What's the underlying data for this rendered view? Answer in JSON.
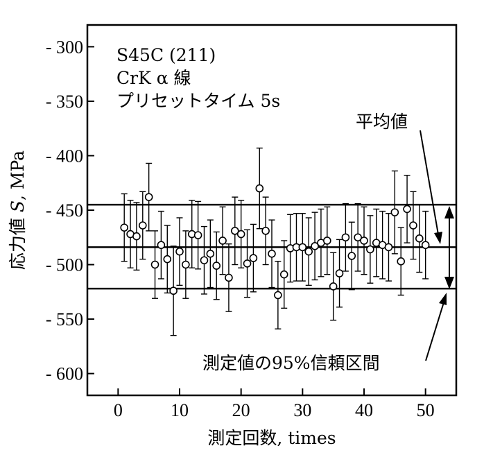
{
  "chart_data": {
    "type": "scatter",
    "annotations": {
      "lines": [
        "S45C (211)",
        "CrK α 線",
        "プリセットタイム 5s"
      ],
      "mean_label": "平均値",
      "ci_label": "測定値の95%信頼区間"
    },
    "xlabel": "測定回数, times",
    "ylabel_prefix": "応力値 ",
    "ylabel_var": "S",
    "ylabel_suffix": ", MPa",
    "xlim": [
      -5,
      55
    ],
    "ylim": [
      -620,
      -280
    ],
    "y_reversed": true,
    "x_ticks": [
      0,
      10,
      20,
      30,
      40,
      50
    ],
    "x_tick_labels": [
      "0",
      "10",
      "20",
      "30",
      "40",
      "50"
    ],
    "y_ticks": [
      -300,
      -350,
      -400,
      -450,
      -500,
      -550,
      -600
    ],
    "y_tick_labels": [
      "- 300",
      "- 350",
      "- 400",
      "- 450",
      "- 500",
      "- 550",
      "- 600"
    ],
    "mean": -484,
    "ci": [
      -445,
      -522
    ],
    "grid": false,
    "legend": "none",
    "x": [
      1,
      2,
      3,
      4,
      5,
      6,
      7,
      8,
      9,
      10,
      11,
      12,
      13,
      14,
      15,
      16,
      17,
      18,
      19,
      20,
      21,
      22,
      23,
      24,
      25,
      26,
      27,
      28,
      29,
      30,
      31,
      32,
      33,
      34,
      35,
      36,
      37,
      38,
      39,
      40,
      41,
      42,
      43,
      44,
      45,
      46,
      47,
      48,
      49,
      50
    ],
    "y": [
      -466,
      -472,
      -474,
      -464,
      -438,
      -500,
      -482,
      -495,
      -524,
      -488,
      -500,
      -472,
      -473,
      -496,
      -490,
      -501,
      -478,
      -512,
      -469,
      -472,
      -499,
      -494,
      -430,
      -469,
      -490,
      -528,
      -509,
      -485,
      -484,
      -484,
      -488,
      -483,
      -480,
      -478,
      -520,
      -508,
      -475,
      -492,
      -475,
      -478,
      -486,
      -480,
      -482,
      -484,
      -452,
      -497,
      -449,
      -464,
      -476,
      -482
    ],
    "err": [
      31,
      31,
      31,
      31,
      31,
      31,
      31,
      31,
      41,
      31,
      31,
      31,
      31,
      31,
      31,
      31,
      31,
      31,
      31,
      31,
      31,
      31,
      37,
      31,
      31,
      31,
      31,
      31,
      31,
      31,
      31,
      31,
      31,
      31,
      31,
      31,
      31,
      31,
      31,
      31,
      31,
      31,
      31,
      31,
      38,
      31,
      31,
      31,
      31,
      31
    ]
  }
}
